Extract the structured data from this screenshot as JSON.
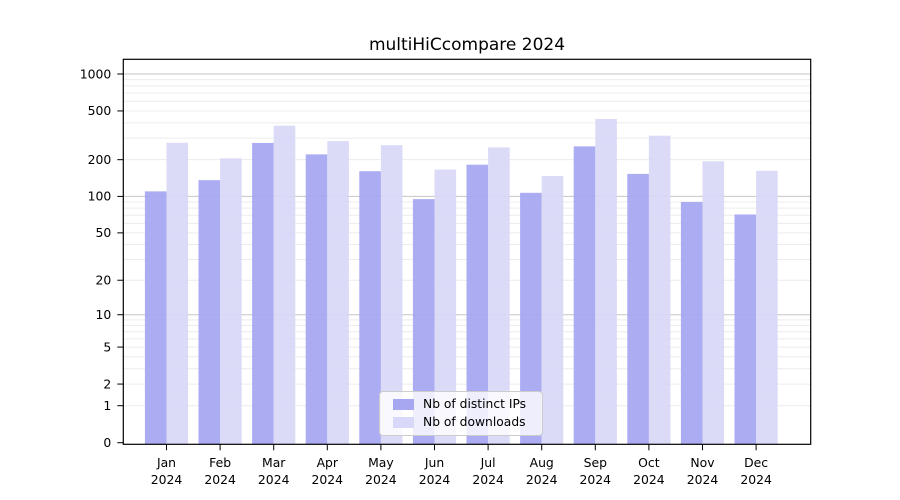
{
  "chart_data": {
    "type": "bar",
    "title": "multiHiCcompare 2024",
    "scale": "log1p",
    "categories": [
      "Jan",
      "Feb",
      "Mar",
      "Apr",
      "May",
      "Jun",
      "Jul",
      "Aug",
      "Sep",
      "Oct",
      "Nov",
      "Dec"
    ],
    "year_label": "2024",
    "series": [
      {
        "name": "Nb of distinct IPs",
        "color": "#a6a6f1",
        "values": [
          110,
          136,
          274,
          221,
          161,
          95,
          182,
          107,
          257,
          153,
          90,
          71
        ]
      },
      {
        "name": "Nb of downloads",
        "color": "#d8d8f8",
        "values": [
          275,
          205,
          379,
          284,
          263,
          166,
          252,
          147,
          430,
          314,
          194,
          162
        ]
      }
    ],
    "y_ticks": [
      0,
      1,
      2,
      5,
      10,
      20,
      50,
      100,
      200,
      500,
      1000
    ],
    "ylim": [
      0,
      1300
    ],
    "grid": {
      "on": true,
      "major_color": "#c6c6c6",
      "minor_color": "#ececec",
      "major_lines_at": [
        10,
        100,
        1000
      ]
    },
    "legend_position": "bottom-center",
    "xlabel": "",
    "ylabel": ""
  }
}
